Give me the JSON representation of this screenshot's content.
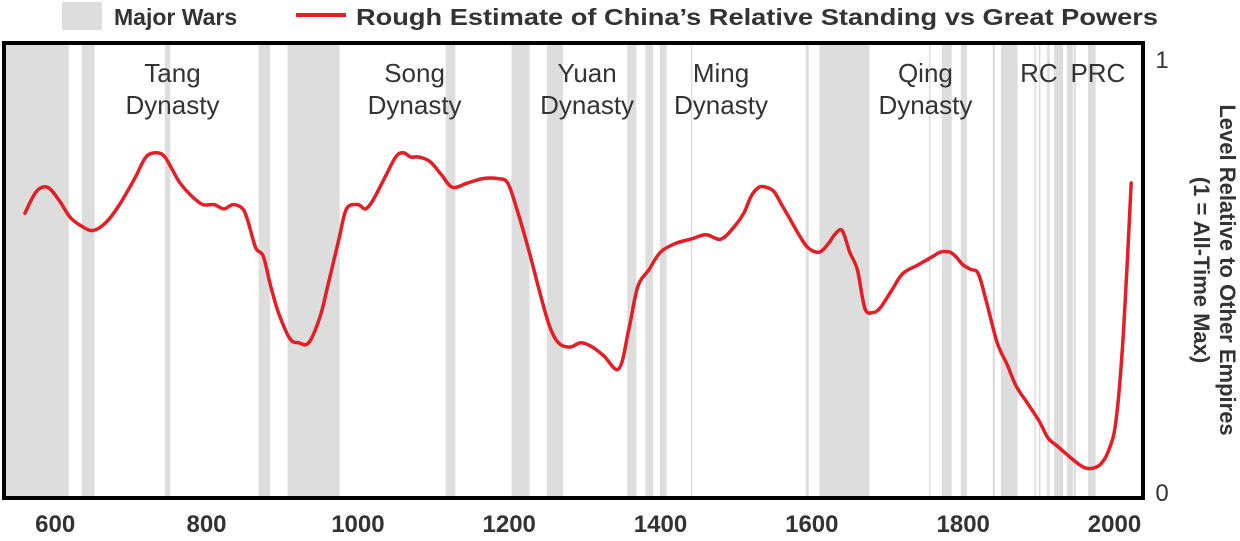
{
  "chart_data": {
    "type": "line",
    "legend": {
      "placement": "top",
      "wars_label": "Major Wars",
      "line_label": "Rough Estimate of China’s Relative Standing vs Great Powers"
    },
    "ylabel_line1": "Level Relative to Other Empires",
    "ylabel_line2": "(1 = All-Time Max)",
    "xlim": [
      535,
      2035
    ],
    "ylim": [
      0,
      1
    ],
    "x_ticks": [
      600,
      800,
      1000,
      1200,
      1400,
      1600,
      1800,
      2000
    ],
    "x_tick_labels": [
      "600",
      "800",
      "1000",
      "1200",
      "1400",
      "1600",
      "1800",
      "2000"
    ],
    "y_ticks": [
      0,
      1
    ],
    "y_tick_labels": [
      "0",
      "1"
    ],
    "grid": false,
    "colors": {
      "line": "#e31e25",
      "wars": "#dddddd",
      "frame": "#000000"
    },
    "war_periods": [
      [
        535,
        618
      ],
      [
        635,
        652
      ],
      [
        745,
        752
      ],
      [
        869,
        884
      ],
      [
        907,
        976
      ],
      [
        1116,
        1129
      ],
      [
        1203,
        1227
      ],
      [
        1250,
        1271
      ],
      [
        1356,
        1368
      ],
      [
        1380,
        1390
      ],
      [
        1399,
        1408
      ],
      [
        1440,
        1442
      ],
      [
        1592,
        1596
      ],
      [
        1610,
        1676
      ],
      [
        1755,
        1757
      ],
      [
        1772,
        1785
      ],
      [
        1797,
        1805
      ],
      [
        1839,
        1842
      ],
      [
        1850,
        1872
      ],
      [
        1894,
        1896
      ],
      [
        1900,
        1902
      ],
      [
        1911,
        1914
      ],
      [
        1920,
        1932
      ],
      [
        1937,
        1945
      ],
      [
        1946,
        1949
      ],
      [
        1965,
        1975
      ]
    ],
    "dynasties": [
      {
        "line1": "Tang",
        "line2": "Dynasty",
        "x": 755
      },
      {
        "line1": "Song",
        "line2": "Dynasty",
        "x": 1075
      },
      {
        "line1": "Yuan",
        "line2": "Dynasty",
        "x": 1303
      },
      {
        "line1": "Ming",
        "line2": "Dynasty",
        "x": 1480
      },
      {
        "line1": "Qing",
        "line2": "Dynasty",
        "x": 1750
      },
      {
        "line1": "RC",
        "line2": "",
        "x": 1900
      },
      {
        "line1": "PRC",
        "line2": "",
        "x": 1978
      }
    ],
    "series": [
      {
        "name": "Rough Estimate of China’s Relative Standing vs Great Powers",
        "x": [
          560,
          575,
          590,
          605,
          620,
          635,
          650,
          668,
          685,
          705,
          720,
          735,
          745,
          755,
          765,
          780,
          795,
          810,
          823,
          835,
          848,
          855,
          865,
          875,
          885,
          895,
          910,
          922,
          935,
          950,
          960,
          975,
          985,
          1000,
          1010,
          1020,
          1035,
          1050,
          1060,
          1070,
          1080,
          1095,
          1110,
          1125,
          1145,
          1165,
          1185,
          1198,
          1210,
          1225,
          1240,
          1253,
          1265,
          1280,
          1295,
          1310,
          1325,
          1345,
          1358,
          1370,
          1385,
          1400,
          1420,
          1440,
          1460,
          1480,
          1498,
          1510,
          1520,
          1530,
          1540,
          1550,
          1560,
          1570,
          1583,
          1595,
          1610,
          1622,
          1630,
          1640,
          1650,
          1660,
          1670,
          1680,
          1690,
          1705,
          1720,
          1740,
          1750,
          1760,
          1770,
          1782,
          1790,
          1800,
          1810,
          1820,
          1830,
          1845,
          1858,
          1870,
          1885,
          1900,
          1912,
          1925,
          1938,
          1952,
          1962,
          1972,
          1982,
          1992,
          2002,
          2012,
          2022
        ],
        "y": [
          0.65,
          0.7,
          0.71,
          0.68,
          0.64,
          0.62,
          0.61,
          0.63,
          0.67,
          0.73,
          0.78,
          0.79,
          0.78,
          0.75,
          0.72,
          0.69,
          0.67,
          0.67,
          0.66,
          0.67,
          0.66,
          0.63,
          0.57,
          0.55,
          0.48,
          0.42,
          0.36,
          0.35,
          0.35,
          0.41,
          0.48,
          0.59,
          0.66,
          0.67,
          0.66,
          0.68,
          0.73,
          0.78,
          0.79,
          0.78,
          0.78,
          0.77,
          0.74,
          0.71,
          0.72,
          0.73,
          0.73,
          0.72,
          0.66,
          0.57,
          0.47,
          0.39,
          0.35,
          0.34,
          0.35,
          0.34,
          0.32,
          0.29,
          0.38,
          0.48,
          0.52,
          0.56,
          0.58,
          0.59,
          0.6,
          0.59,
          0.62,
          0.65,
          0.69,
          0.71,
          0.71,
          0.7,
          0.67,
          0.64,
          0.6,
          0.57,
          0.56,
          0.58,
          0.6,
          0.61,
          0.56,
          0.52,
          0.43,
          0.42,
          0.43,
          0.47,
          0.51,
          0.53,
          0.54,
          0.55,
          0.56,
          0.56,
          0.55,
          0.53,
          0.52,
          0.51,
          0.45,
          0.35,
          0.3,
          0.25,
          0.21,
          0.17,
          0.13,
          0.11,
          0.09,
          0.07,
          0.06,
          0.06,
          0.07,
          0.1,
          0.17,
          0.38,
          0.72
        ]
      }
    ]
  }
}
